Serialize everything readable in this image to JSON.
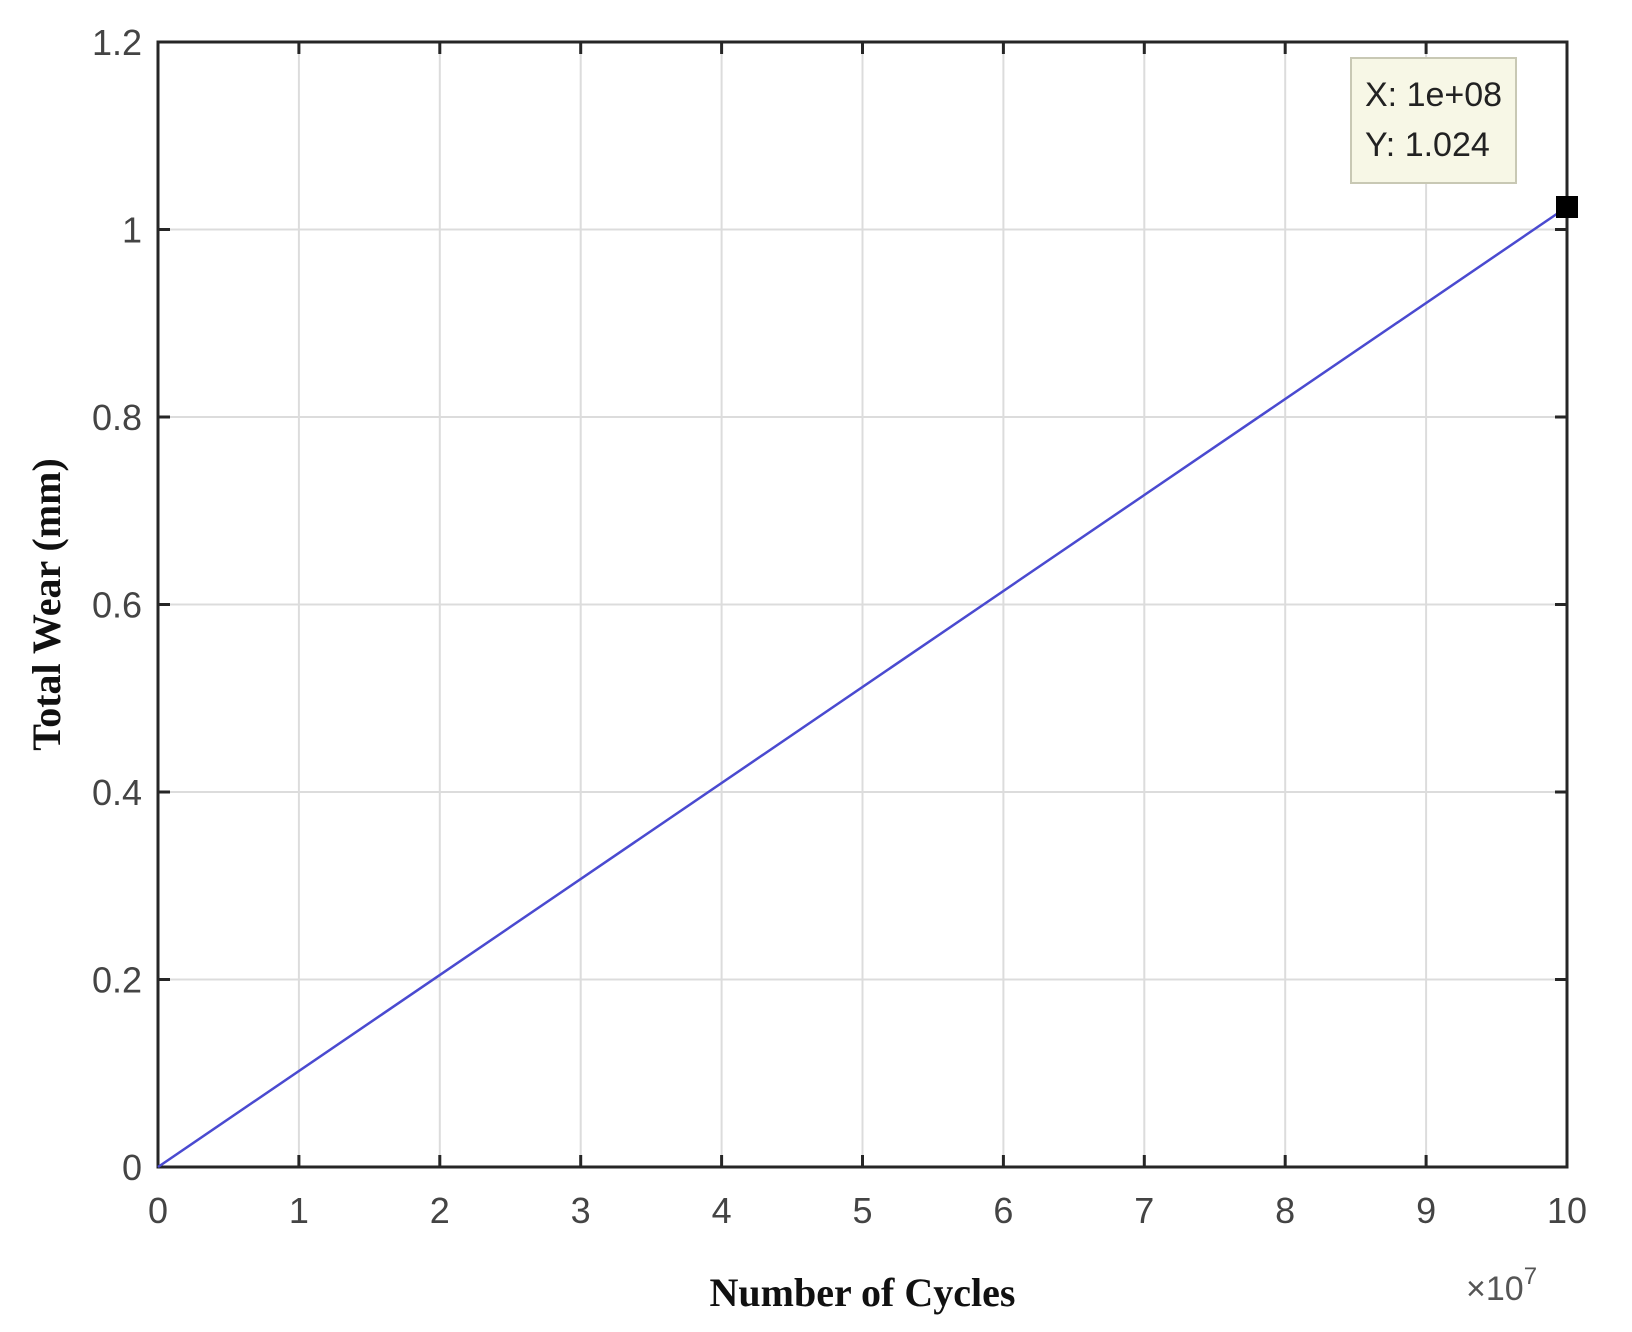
{
  "chart_data": {
    "type": "line",
    "xlabel": "Number of Cycles",
    "ylabel": "Total Wear (mm)",
    "x_exponent_label": "×10",
    "x_exponent_power": "7",
    "xlim": [
      0,
      10
    ],
    "ylim": [
      0,
      1.2
    ],
    "grid": true,
    "x_ticks": [
      0,
      1,
      2,
      3,
      4,
      5,
      6,
      7,
      8,
      9,
      10
    ],
    "x_tick_labels": [
      "0",
      "1",
      "2",
      "3",
      "4",
      "5",
      "6",
      "7",
      "8",
      "9",
      "10"
    ],
    "y_ticks": [
      0,
      0.2,
      0.4,
      0.6,
      0.8,
      1,
      1.2
    ],
    "y_tick_labels": [
      "0",
      "0.2",
      "0.4",
      "0.6",
      "0.8",
      "1",
      "1.2"
    ],
    "series": [
      {
        "color": "#4a4ad0",
        "x": [
          0,
          10
        ],
        "y": [
          0,
          1.024
        ]
      }
    ],
    "datatip": {
      "x": 10,
      "y": 1.024,
      "lines": [
        "X: 1e+08",
        "Y: 1.024"
      ],
      "background": "#f7f7e6",
      "marker_color": "#000000"
    }
  }
}
